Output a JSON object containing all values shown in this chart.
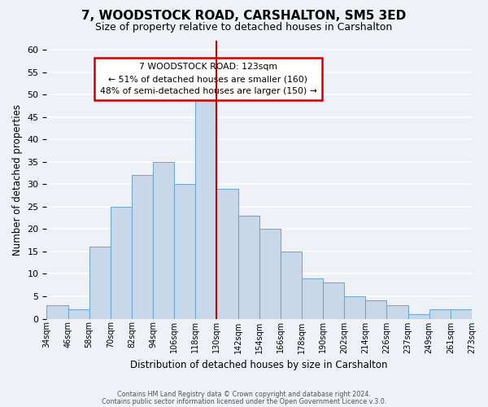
{
  "title": "7, WOODSTOCK ROAD, CARSHALTON, SM5 3ED",
  "subtitle": "Size of property relative to detached houses in Carshalton",
  "xlabel": "Distribution of detached houses by size in Carshalton",
  "ylabel": "Number of detached properties",
  "bar_color": "#c8d8e8",
  "bar_edge_color": "#6fa8d0",
  "bins": [
    "34sqm",
    "46sqm",
    "58sqm",
    "70sqm",
    "82sqm",
    "94sqm",
    "106sqm",
    "118sqm",
    "130sqm",
    "142sqm",
    "154sqm",
    "166sqm",
    "178sqm",
    "190sqm",
    "202sqm",
    "214sqm",
    "226sqm",
    "237sqm",
    "249sqm",
    "261sqm",
    "273sqm"
  ],
  "values": [
    3,
    2,
    16,
    25,
    32,
    35,
    30,
    49,
    29,
    23,
    20,
    15,
    9,
    8,
    5,
    4,
    3,
    1,
    2,
    2
  ],
  "ylim": [
    0,
    62
  ],
  "yticks": [
    0,
    5,
    10,
    15,
    20,
    25,
    30,
    35,
    40,
    45,
    50,
    55,
    60
  ],
  "red_line_bin_index": 7,
  "annotation_title": "7 WOODSTOCK ROAD: 123sqm",
  "annotation_line1": "← 51% of detached houses are smaller (160)",
  "annotation_line2": "48% of semi-detached houses are larger (150) →",
  "footer1": "Contains HM Land Registry data © Crown copyright and database right 2024.",
  "footer2": "Contains public sector information licensed under the Open Government Licence v.3.0.",
  "background_color": "#eef2f7",
  "grid_color": "#ffffff",
  "annotation_box_color": "#ffffff",
  "annotation_border_color": "#cc0000",
  "red_line_color": "#cc0000"
}
